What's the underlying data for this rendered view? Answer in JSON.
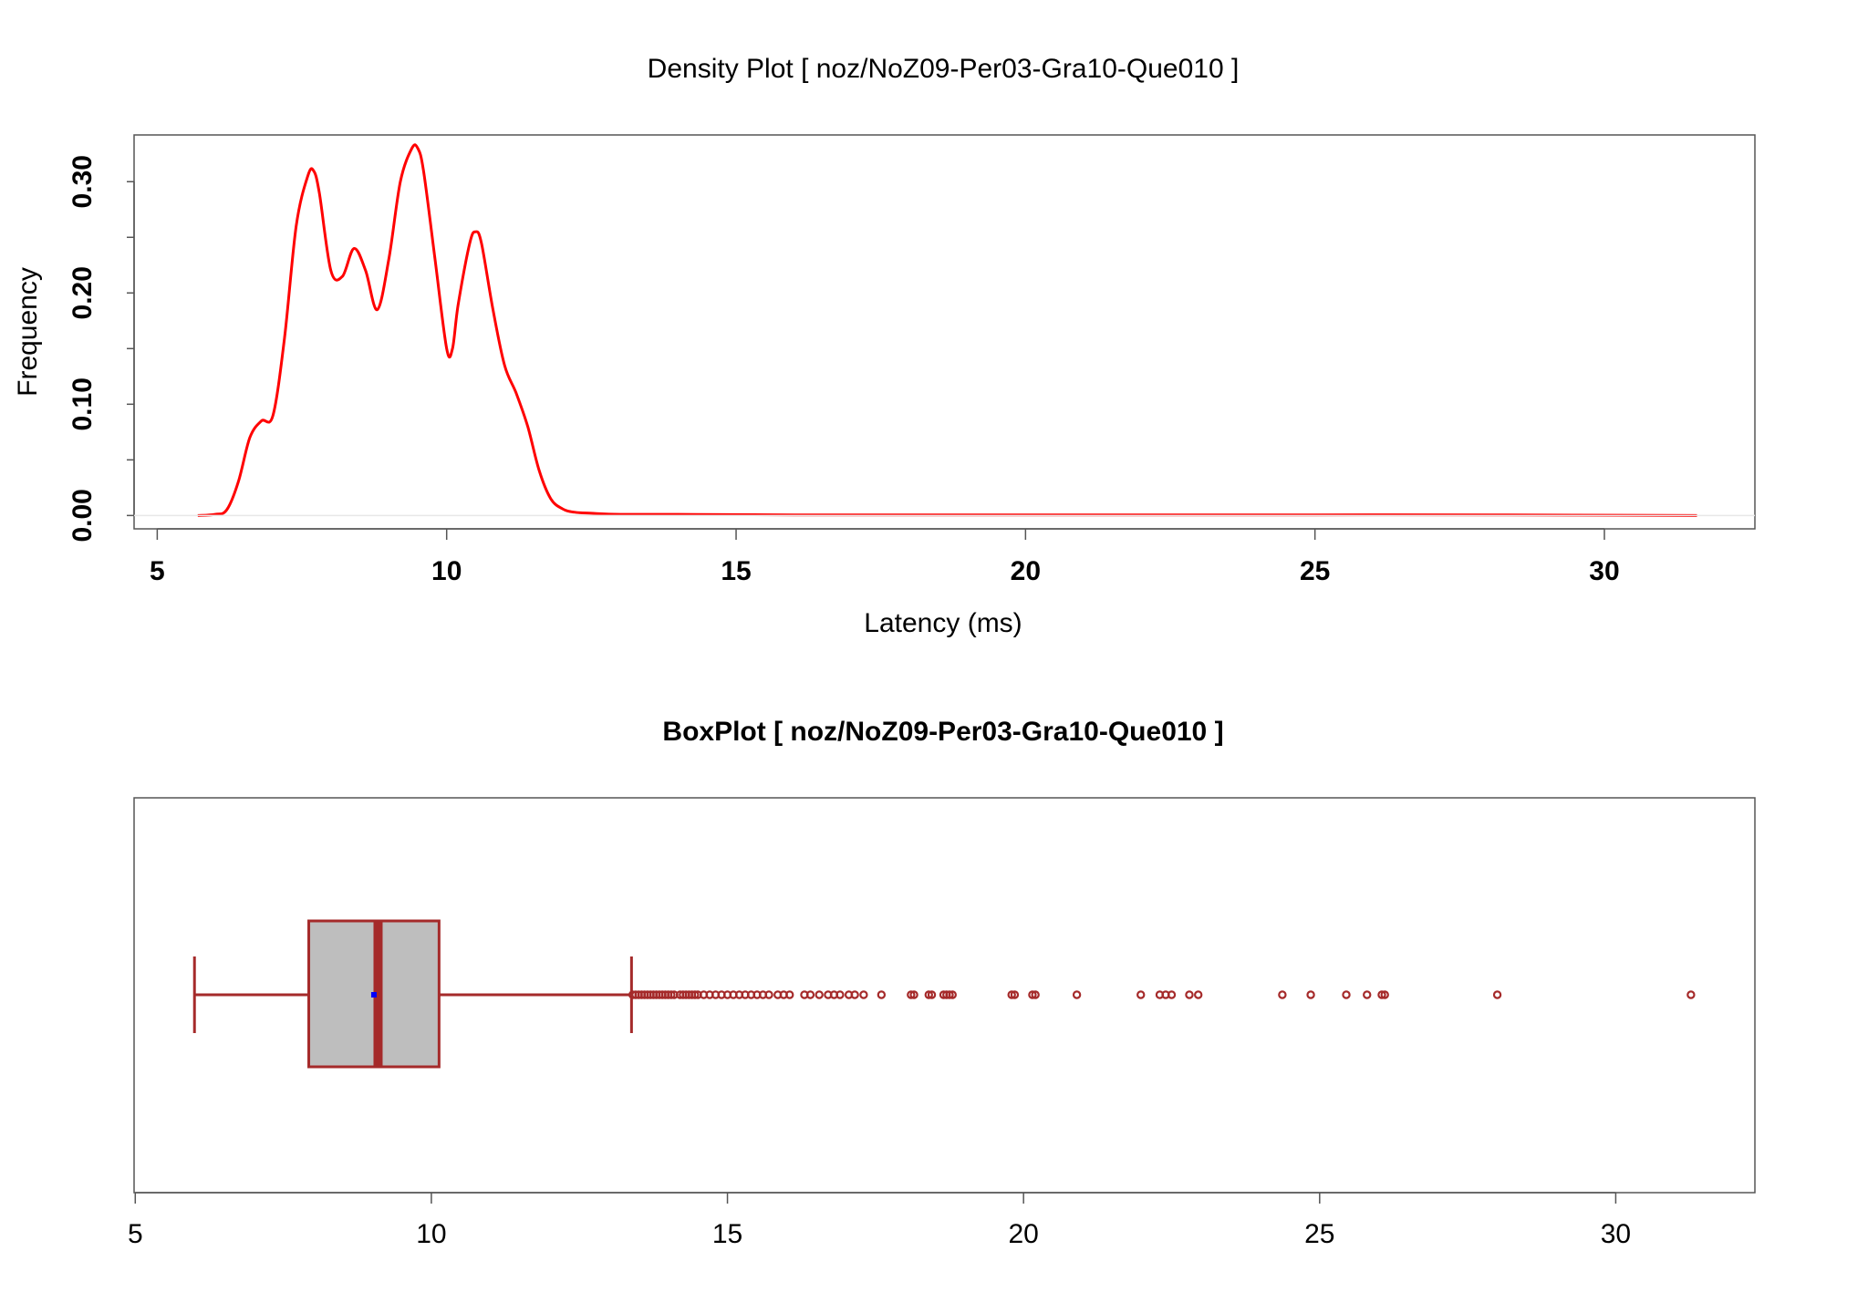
{
  "chart_data": [
    {
      "type": "line",
      "title": "Density Plot [ noz/NoZ09-Per03-Gra10-Que010 ]",
      "xlabel": "Latency (ms)",
      "ylabel": "Frequency",
      "xlim": [
        4.6,
        32.6
      ],
      "ylim": [
        -0.012,
        0.342
      ],
      "xticks": [
        "5",
        "10",
        "15",
        "20",
        "25",
        "30"
      ],
      "yticks": [
        "0.00",
        "0.10",
        "0.20",
        "0.30"
      ],
      "grid": false,
      "line_color": "#ff0000",
      "x": [
        5.7,
        6.0,
        6.2,
        6.4,
        6.6,
        6.8,
        7.0,
        7.2,
        7.4,
        7.6,
        7.7,
        7.8,
        8.0,
        8.2,
        8.4,
        8.6,
        8.8,
        9.0,
        9.2,
        9.4,
        9.5,
        9.6,
        9.8,
        10.0,
        10.1,
        10.2,
        10.4,
        10.5,
        10.6,
        10.8,
        11.0,
        11.2,
        11.4,
        11.6,
        11.8,
        12.0,
        12.2,
        12.5,
        13.0,
        14.0,
        16.0,
        18.0,
        20.0,
        22.0,
        25.0,
        28.0,
        31.6
      ],
      "y": [
        0.0,
        0.001,
        0.005,
        0.03,
        0.07,
        0.085,
        0.09,
        0.16,
        0.26,
        0.305,
        0.31,
        0.29,
        0.22,
        0.215,
        0.24,
        0.22,
        0.185,
        0.23,
        0.3,
        0.33,
        0.33,
        0.31,
        0.23,
        0.15,
        0.15,
        0.19,
        0.245,
        0.255,
        0.245,
        0.185,
        0.135,
        0.11,
        0.08,
        0.04,
        0.015,
        0.006,
        0.003,
        0.002,
        0.001,
        0.001,
        0.0005,
        0.0005,
        0.0005,
        0.0005,
        0.0005,
        0.0005,
        0.0
      ]
    },
    {
      "type": "box",
      "title": "BoxPlot [ noz/NoZ09-Per03-Gra10-Que010 ]",
      "xlim": [
        4.98,
        32.35
      ],
      "xticks": [
        "5",
        "10",
        "15",
        "20",
        "25",
        "30"
      ],
      "box_color": "#a52a2a",
      "box_fill": "#bebebe",
      "mean_color": "#0000ff",
      "whisker_low": 6.0,
      "q1": 7.93,
      "median": 9.1,
      "q3": 10.13,
      "whisker_high": 13.38,
      "mean": 9.03,
      "outliers": [
        13.4,
        13.45,
        13.5,
        13.55,
        13.6,
        13.65,
        13.7,
        13.75,
        13.8,
        13.85,
        13.9,
        13.95,
        14.0,
        14.05,
        14.1,
        14.2,
        14.25,
        14.3,
        14.35,
        14.4,
        14.45,
        14.5,
        14.6,
        14.7,
        14.8,
        14.9,
        15.0,
        15.1,
        15.2,
        15.3,
        15.4,
        15.5,
        15.6,
        15.7,
        15.85,
        15.95,
        16.05,
        16.3,
        16.4,
        16.55,
        16.7,
        16.8,
        16.9,
        17.05,
        17.15,
        17.3,
        17.6,
        18.1,
        18.15,
        18.4,
        18.45,
        18.65,
        18.7,
        18.75,
        18.8,
        19.8,
        19.85,
        20.15,
        20.2,
        20.9,
        21.98,
        22.3,
        22.4,
        22.5,
        22.8,
        22.95,
        24.37,
        24.85,
        25.45,
        25.8,
        26.05,
        26.1,
        28.0,
        31.27
      ]
    }
  ]
}
